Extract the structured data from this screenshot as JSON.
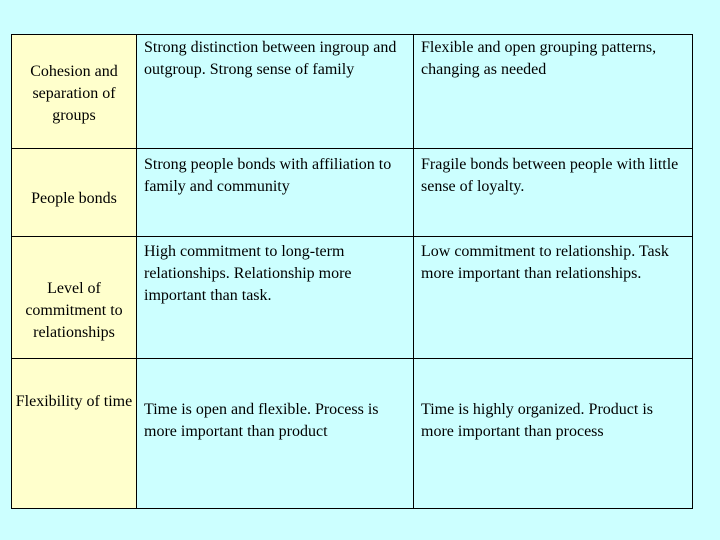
{
  "table": {
    "rows": [
      {
        "label": "Cohesion and separation of groups",
        "col1": "Strong distinction between ingroup and outgroup. Strong sense of family",
        "col2": "Flexible and open grouping patterns, changing as needed"
      },
      {
        "label": "People bonds",
        "col1": "Strong people bonds with affiliation to family and community",
        "col2": "Fragile bonds between people with little sense of loyalty."
      },
      {
        "label": "Level of commitment to relationships",
        "col1": "High commitment to long-term relationships. Relationship more important than task.",
        "col2": "Low commitment to relationship. Task more important than relationships."
      },
      {
        "label": "Flexibility of time",
        "col1": "Time is open and flexible. Process is more important than product",
        "col2": "Time is highly organized. Product is more important than process"
      }
    ]
  },
  "colors": {
    "background": "#ccffff",
    "label_column": "#ffffcc",
    "border": "#000000"
  }
}
